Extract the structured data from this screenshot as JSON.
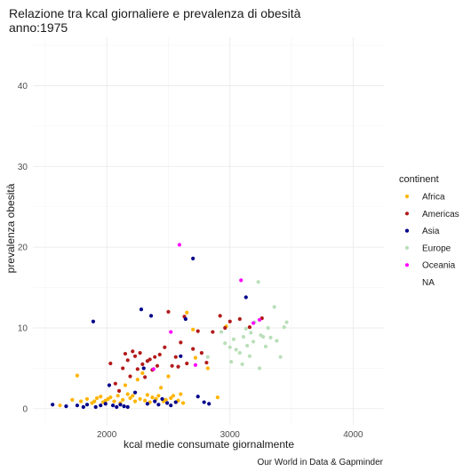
{
  "chart_data": {
    "type": "scatter",
    "title": "Relazione tra kcal giornaliere e prevalenza di obesità",
    "subtitle": "anno:1975",
    "xlabel": "kcal medie consumate giornalmente",
    "ylabel": "prevalenza obesità",
    "caption": "Our World in Data & Gapminder",
    "xlim": [
      1400,
      4250
    ],
    "ylim": [
      -2,
      46
    ],
    "x_ticks": [
      2000,
      3000,
      4000
    ],
    "y_ticks": [
      0,
      10,
      20,
      30,
      40
    ],
    "grid": true,
    "legend": {
      "title": "continent",
      "placement": "right"
    },
    "series": [
      {
        "name": "Africa",
        "color": "#FFB400",
        "points": [
          [
            1620,
            0.4
          ],
          [
            1720,
            1.1
          ],
          [
            1760,
            4.1
          ],
          [
            1790,
            0.9
          ],
          [
            1840,
            1.2
          ],
          [
            1880,
            0.7
          ],
          [
            1900,
            0.9
          ],
          [
            1920,
            1.3
          ],
          [
            1950,
            1.5
          ],
          [
            1970,
            0.8
          ],
          [
            1990,
            1.0
          ],
          [
            2010,
            1.2
          ],
          [
            2030,
            1.4
          ],
          [
            2060,
            0.9
          ],
          [
            2090,
            1.6
          ],
          [
            2110,
            0.7
          ],
          [
            2130,
            1.1
          ],
          [
            2150,
            2.9
          ],
          [
            2170,
            1.8
          ],
          [
            2190,
            1.3
          ],
          [
            2210,
            1.6
          ],
          [
            2230,
            0.9
          ],
          [
            2250,
            3.6
          ],
          [
            2270,
            1.2
          ],
          [
            2290,
            4.4
          ],
          [
            2310,
            1.0
          ],
          [
            2330,
            1.7
          ],
          [
            2350,
            0.8
          ],
          [
            2370,
            1.4
          ],
          [
            2400,
            1.2
          ],
          [
            2420,
            1.6
          ],
          [
            2440,
            2.6
          ],
          [
            2460,
            0.9
          ],
          [
            2480,
            1.1
          ],
          [
            2500,
            4.0
          ],
          [
            2520,
            1.3
          ],
          [
            2540,
            1.6
          ],
          [
            2560,
            0.8
          ],
          [
            2580,
            1.0
          ],
          [
            2600,
            1.8
          ],
          [
            2620,
            0.7
          ],
          [
            2650,
            11.9
          ],
          [
            2700,
            9.8
          ],
          [
            2720,
            6.3
          ],
          [
            2820,
            5.0
          ],
          [
            2900,
            1.4
          ],
          [
            2970,
            10.2
          ]
        ]
      },
      {
        "name": "Americas",
        "color": "#B21A1A",
        "points": [
          [
            2030,
            5.6
          ],
          [
            2070,
            3.1
          ],
          [
            2100,
            2.2
          ],
          [
            2130,
            5.0
          ],
          [
            2150,
            6.8
          ],
          [
            2170,
            6.0
          ],
          [
            2190,
            4.0
          ],
          [
            2210,
            7.1
          ],
          [
            2230,
            6.5
          ],
          [
            2250,
            4.9
          ],
          [
            2270,
            6.9
          ],
          [
            2290,
            5.5
          ],
          [
            2310,
            3.9
          ],
          [
            2330,
            5.9
          ],
          [
            2350,
            6.1
          ],
          [
            2370,
            4.8
          ],
          [
            2390,
            6.4
          ],
          [
            2410,
            5.3
          ],
          [
            2430,
            6.7
          ],
          [
            2470,
            7.6
          ],
          [
            2500,
            12.0
          ],
          [
            2530,
            5.3
          ],
          [
            2560,
            6.4
          ],
          [
            2580,
            5.2
          ],
          [
            2600,
            8.2
          ],
          [
            2630,
            11.4
          ],
          [
            2650,
            5.6
          ],
          [
            2700,
            7.4
          ],
          [
            2740,
            9.6
          ],
          [
            2770,
            6.9
          ],
          [
            2810,
            5.7
          ],
          [
            2860,
            9.5
          ],
          [
            2920,
            11.5
          ],
          [
            2960,
            10.0
          ],
          [
            3000,
            10.8
          ],
          [
            3080,
            11.1
          ],
          [
            3160,
            10.1
          ],
          [
            3260,
            11.2
          ]
        ]
      },
      {
        "name": "Asia",
        "color": "#00008B",
        "points": [
          [
            1560,
            0.5
          ],
          [
            1670,
            0.3
          ],
          [
            1760,
            0.4
          ],
          [
            1810,
            0.2
          ],
          [
            1840,
            0.5
          ],
          [
            1890,
            10.8
          ],
          [
            1910,
            0.2
          ],
          [
            1950,
            0.4
          ],
          [
            1990,
            0.6
          ],
          [
            2020,
            2.9
          ],
          [
            2050,
            0.4
          ],
          [
            2080,
            0.2
          ],
          [
            2110,
            0.5
          ],
          [
            2140,
            0.3
          ],
          [
            2170,
            0.2
          ],
          [
            2230,
            2.0
          ],
          [
            2280,
            12.3
          ],
          [
            2300,
            5.0
          ],
          [
            2330,
            0.6
          ],
          [
            2360,
            11.5
          ],
          [
            2390,
            0.9
          ],
          [
            2420,
            0.5
          ],
          [
            2450,
            1.2
          ],
          [
            2490,
            0.7
          ],
          [
            2520,
            0.4
          ],
          [
            2560,
            0.8
          ],
          [
            2600,
            6.5
          ],
          [
            2640,
            11.1
          ],
          [
            2700,
            18.6
          ],
          [
            2740,
            1.5
          ],
          [
            2790,
            0.8
          ],
          [
            2830,
            0.6
          ],
          [
            3130,
            13.8
          ]
        ]
      },
      {
        "name": "Europe",
        "color": "#B9DFB9",
        "points": [
          [
            2820,
            6.4
          ],
          [
            2930,
            9.5
          ],
          [
            2960,
            8.1
          ],
          [
            3000,
            7.6
          ],
          [
            3010,
            5.8
          ],
          [
            3030,
            8.6
          ],
          [
            3050,
            7.3
          ],
          [
            3080,
            6.9
          ],
          [
            3100,
            5.5
          ],
          [
            3110,
            8.9
          ],
          [
            3130,
            9.9
          ],
          [
            3140,
            7.8
          ],
          [
            3160,
            6.5
          ],
          [
            3170,
            9.4
          ],
          [
            3190,
            8.3
          ],
          [
            3200,
            10.7
          ],
          [
            3230,
            15.7
          ],
          [
            3240,
            5.0
          ],
          [
            3250,
            9.1
          ],
          [
            3270,
            8.9
          ],
          [
            3290,
            7.7
          ],
          [
            3310,
            10.0
          ],
          [
            3330,
            8.8
          ],
          [
            3360,
            12.6
          ],
          [
            3380,
            8.4
          ],
          [
            3410,
            6.4
          ],
          [
            3440,
            10.1
          ],
          [
            3460,
            10.7
          ]
        ]
      },
      {
        "name": "Oceania",
        "color": "#FF00FF",
        "points": [
          [
            2380,
            4.9
          ],
          [
            2520,
            9.5
          ],
          [
            2590,
            20.3
          ],
          [
            2720,
            5.4
          ],
          [
            3090,
            15.9
          ],
          [
            3190,
            10.6
          ],
          [
            3240,
            11.0
          ]
        ]
      },
      {
        "name": "NA",
        "color": "#00000000",
        "points": []
      }
    ]
  }
}
